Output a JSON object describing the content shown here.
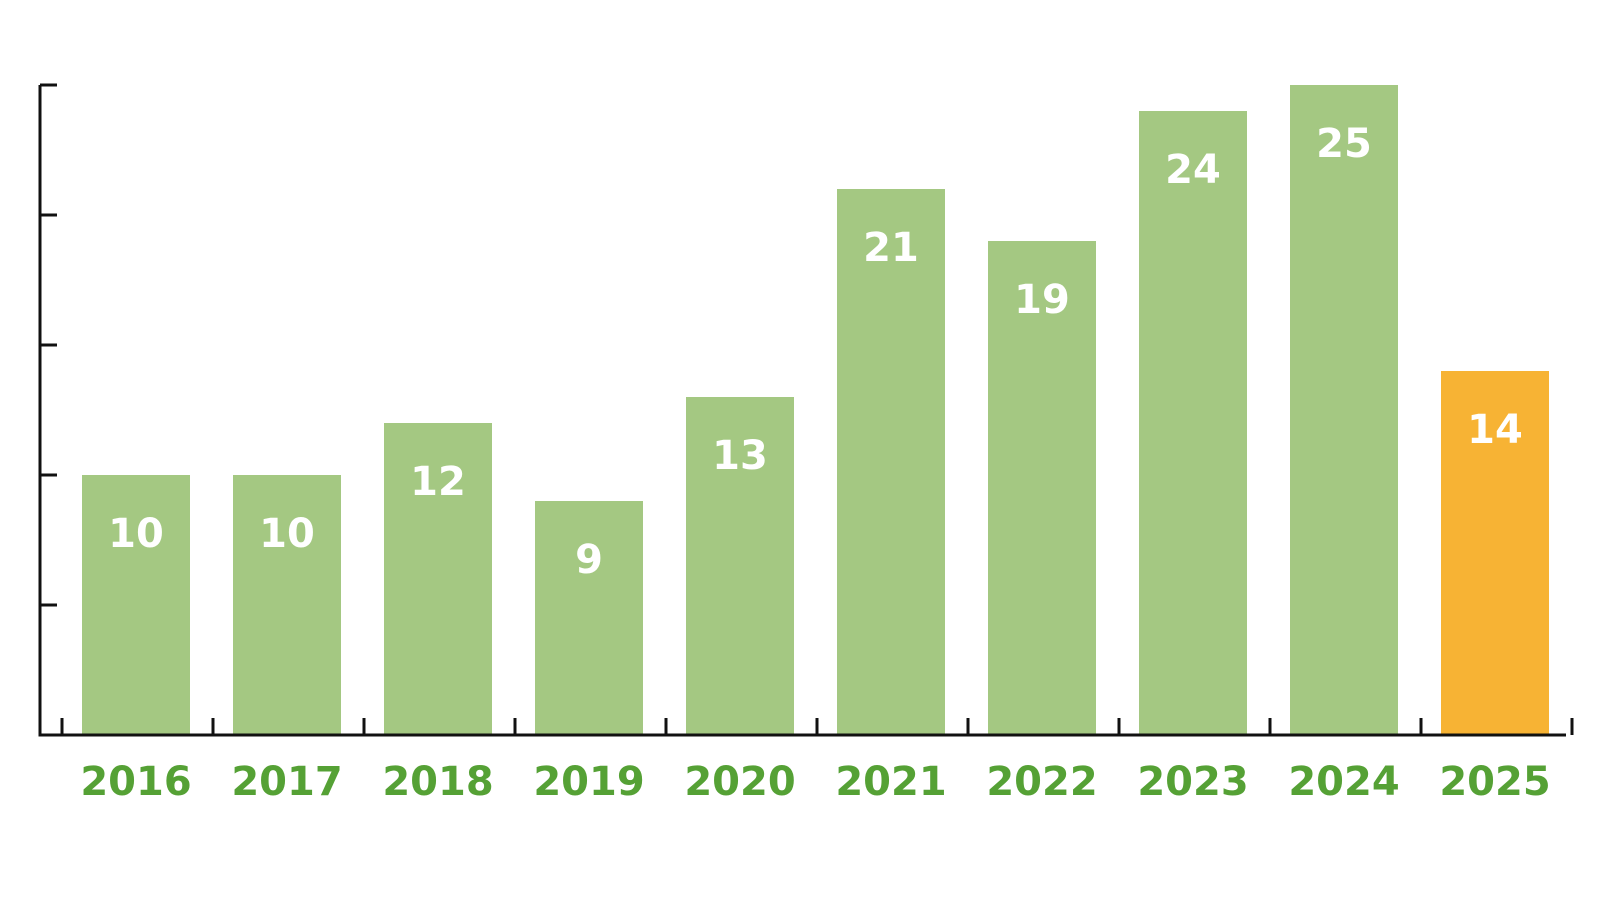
{
  "chart_data": {
    "type": "bar",
    "categories": [
      "2016",
      "2017",
      "2018",
      "2019",
      "2020",
      "2021",
      "2022",
      "2023",
      "2024",
      "2025"
    ],
    "values": [
      10,
      10,
      12,
      9,
      13,
      21,
      19,
      24,
      25,
      14
    ],
    "highlight_index": 9,
    "ylim": [
      0,
      25
    ],
    "y_tick_values": [
      0,
      5,
      10,
      15,
      20,
      25
    ],
    "y_tick_labels_shown": false,
    "data_labels": true,
    "grid": false,
    "legend": "none"
  },
  "colors": {
    "bar": "#a4c882",
    "highlight_bar": "#f7b334",
    "category_label": "#55a135",
    "value_label": "#ffffff",
    "axis": "#111111"
  }
}
